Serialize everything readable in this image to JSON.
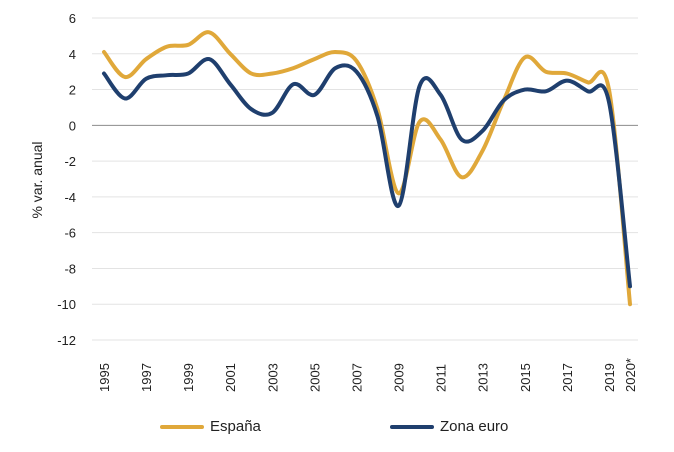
{
  "chart_data": {
    "type": "line",
    "ylabel": "% var. anual",
    "xlabel": "",
    "ylim": [
      -12,
      6
    ],
    "yticks": [
      6,
      4,
      2,
      0,
      -2,
      -4,
      -6,
      -8,
      -10,
      -12
    ],
    "x": [
      "1995",
      "1996",
      "1997",
      "1998",
      "1999",
      "2000",
      "2001",
      "2002",
      "2003",
      "2004",
      "2005",
      "2006",
      "2007",
      "2008",
      "2009",
      "2010",
      "2011",
      "2012",
      "2013",
      "2014",
      "2015",
      "2016",
      "2017",
      "2018",
      "2019",
      "2020*"
    ],
    "x_tick_labels": [
      "1995",
      "1997",
      "1999",
      "2001",
      "2003",
      "2005",
      "2007",
      "2009",
      "2011",
      "2013",
      "2015",
      "2017",
      "2019",
      "2020*"
    ],
    "grid": "horizontal",
    "legend_position": "bottom",
    "series": [
      {
        "name": "España",
        "color": "#e0a83a",
        "values": [
          4.1,
          2.7,
          3.7,
          4.4,
          4.5,
          5.2,
          4.0,
          2.9,
          2.9,
          3.2,
          3.7,
          4.1,
          3.6,
          0.9,
          -3.8,
          0.2,
          -0.8,
          -2.9,
          -1.4,
          1.4,
          3.8,
          3.0,
          2.9,
          2.4,
          2.0,
          -10.0
        ]
      },
      {
        "name": "Zona euro",
        "color": "#1f3f6e",
        "values": [
          2.9,
          1.5,
          2.6,
          2.8,
          2.9,
          3.7,
          2.3,
          0.9,
          0.7,
          2.3,
          1.7,
          3.2,
          3.0,
          0.5,
          -4.5,
          2.2,
          1.7,
          -0.8,
          -0.3,
          1.4,
          2.0,
          1.9,
          2.5,
          1.9,
          1.3,
          -9.0
        ]
      }
    ]
  }
}
